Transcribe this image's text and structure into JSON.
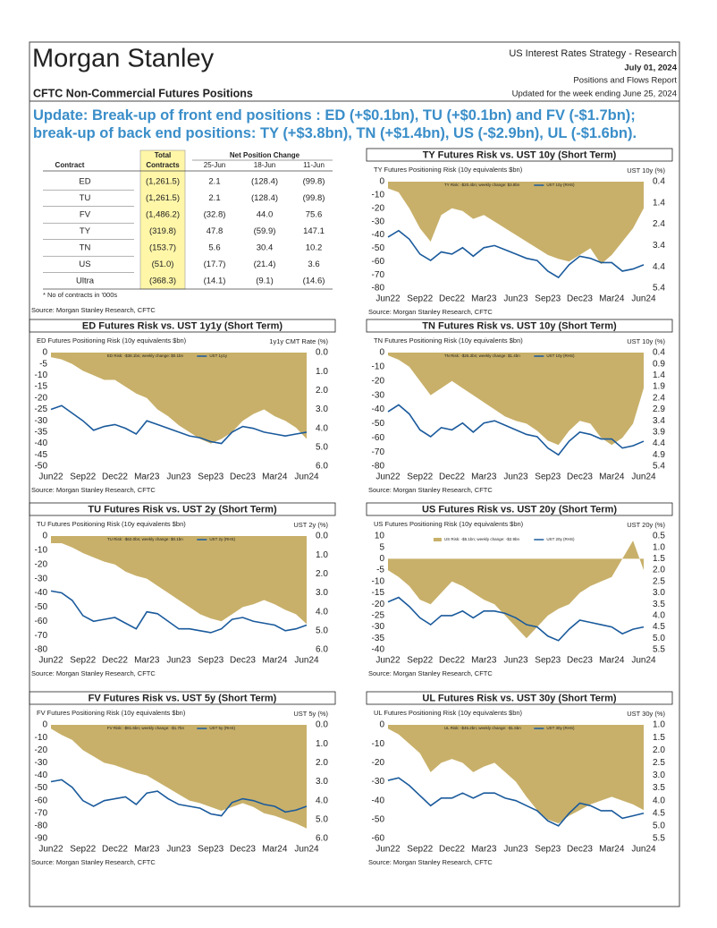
{
  "header": {
    "logo": "Morgan Stanley",
    "report_title": "CFTC Non-Commercial Futures Positions",
    "dept": "US Interest Rates Strategy - Research",
    "date": "July 01, 2024",
    "report_name": "Positions and Flows Report",
    "updated": "Updated for the week ending June 25, 2024"
  },
  "headline": "Update: Break-up of front end positions : ED (+$0.1bn), TU (+$0.1bn) and FV (-$1.7bn); break-up of back end positions: TY (+$3.8bn), TN (+$1.4bn), US (-$2.9bn), UL (-$1.6bn).",
  "table": {
    "total_header": [
      "Total",
      "Contracts"
    ],
    "group_header": "Net Position Change",
    "columns": [
      "Contract",
      "25-Jun",
      "18-Jun",
      "11-Jun"
    ],
    "rows": [
      [
        "ED",
        "(1,261.5)",
        "2.1",
        "(128.4)",
        "(99.8)"
      ],
      [
        "TU",
        "(1,261.5)",
        "2.1",
        "(128.4)",
        "(99.8)"
      ],
      [
        "FV",
        "(1,486.2)",
        "(32.8)",
        "44.0",
        "75.6"
      ],
      [
        "TY",
        "(319.8)",
        "47.8",
        "(59.9)",
        "147.1"
      ],
      [
        "TN",
        "(153.7)",
        "5.6",
        "30.4",
        "10.2"
      ],
      [
        "US",
        "(51.0)",
        "(17.7)",
        "(21.4)",
        "3.6"
      ],
      [
        "Ultra",
        "(368.3)",
        "(14.1)",
        "(9.1)",
        "(14.6)"
      ]
    ],
    "note": "* No of contracts in '000s",
    "source": "Source: Morgan Stanley Research, CFTC"
  },
  "chart_data": [
    {
      "type": "combo",
      "title": "TY Futures Risk vs. UST 10y (Short Term)",
      "y_label": "TY Futures Positioning Risk (10y equivalents $bn)",
      "y2_label": "UST 10y (%)",
      "source": "Source: Morgan Stanley Research, CFTC",
      "categories": [
        "Jun22",
        null,
        null,
        "Sep22",
        null,
        null,
        "Dec22",
        null,
        null,
        "Mar23",
        null,
        null,
        "Jun23",
        null,
        null,
        "Sep23",
        null,
        null,
        "Dec23",
        null,
        null,
        "Mar24",
        null,
        null,
        "Jun24"
      ],
      "ylim": [
        -80,
        0
      ],
      "yticks": [
        0,
        -10,
        -20,
        -30,
        -40,
        -50,
        -60,
        -70,
        -80
      ],
      "y2lim": [
        5.4,
        0.4
      ],
      "y2ticks": [
        0.4,
        1.4,
        2.4,
        3.4,
        4.4,
        5.4
      ],
      "series": [
        {
          "name": "TY Risk: -$20.4bn; weekly change: $3.8bn",
          "type": "area",
          "color": "#c8b06a",
          "values": [
            -5,
            -8,
            -20,
            -35,
            -45,
            -25,
            -20,
            -22,
            -28,
            -25,
            -30,
            -35,
            -40,
            -45,
            -50,
            -55,
            -58,
            -60,
            -55,
            -50,
            -62,
            -55,
            -45,
            -35,
            -20
          ]
        },
        {
          "name": "UST 10y (RHS)",
          "type": "line",
          "axis": "y2",
          "color": "#1a5a9c",
          "values": [
            3.0,
            2.7,
            3.1,
            3.8,
            4.1,
            3.7,
            3.8,
            3.5,
            3.9,
            3.5,
            3.4,
            3.6,
            3.8,
            4.0,
            4.1,
            4.6,
            4.9,
            4.3,
            3.9,
            4.0,
            4.2,
            4.2,
            4.6,
            4.5,
            4.3
          ]
        }
      ]
    },
    {
      "type": "combo",
      "title": "ED Futures Risk vs. UST 1y1y (Short Term)",
      "y_label": "ED Futures Positioning Risk (10y equivalents $bn)",
      "y2_label": "1y1y CMT Rate (%)",
      "source": "Source: Morgan Stanley Research, CFTC",
      "categories": [
        "Jun22",
        null,
        null,
        "Sep22",
        null,
        null,
        "Dec22",
        null,
        null,
        "Mar23",
        null,
        null,
        "Jun23",
        null,
        null,
        "Sep23",
        null,
        null,
        "Dec23",
        null,
        null,
        "Mar24",
        null,
        null,
        "Jun24"
      ],
      "ylim": [
        -50,
        0
      ],
      "yticks": [
        0,
        -5,
        -10,
        -15,
        -20,
        -25,
        -30,
        -35,
        -40,
        -45,
        -50
      ],
      "y2lim": [
        6,
        0
      ],
      "y2ticks": [
        {
          "value": 0,
          "label": "0.0"
        },
        {
          "value": 1,
          "label": "1.0"
        },
        {
          "value": 2,
          "label": "2.0"
        },
        {
          "value": 3,
          "label": "3.0"
        },
        {
          "value": 4,
          "label": "4.0"
        },
        {
          "value": 5,
          "label": "5.0"
        },
        {
          "value": 6,
          "label": "6.0"
        }
      ],
      "series": [
        {
          "name": "ED Risk: -$38.1bn; weekly change: $0.1bn",
          "type": "area",
          "color": "#c8b06a",
          "values": [
            -2,
            -3,
            -5,
            -8,
            -10,
            -12,
            -12,
            -15,
            -18,
            -20,
            -25,
            -28,
            -32,
            -35,
            -38,
            -40,
            -38,
            -35,
            -30,
            -27,
            -25,
            -28,
            -30,
            -33,
            -38
          ]
        },
        {
          "name": "UST 1y1y",
          "type": "line",
          "axis": "y2",
          "color": "#1a5a9c",
          "values": [
            3.0,
            2.8,
            3.2,
            3.6,
            4.1,
            3.9,
            3.8,
            4.0,
            4.3,
            3.6,
            3.8,
            4.0,
            4.2,
            4.4,
            4.5,
            4.7,
            4.8,
            4.2,
            3.9,
            4.0,
            4.2,
            4.3,
            4.4,
            4.3,
            4.2
          ]
        }
      ]
    },
    {
      "type": "combo",
      "title": "TN Futures Risk vs. UST 10y (Short Term)",
      "y_label": "TN Futures Positioning Risk (10y equivalents $bn)",
      "y2_label": "UST 10y (%)",
      "source": "Source: Morgan Stanley Research, CFTC",
      "categories": [
        "Jun22",
        null,
        null,
        "Sep22",
        null,
        null,
        "Dec22",
        null,
        null,
        "Mar23",
        null,
        null,
        "Jun23",
        null,
        null,
        "Sep23",
        null,
        null,
        "Dec23",
        null,
        null,
        "Mar24",
        null,
        null,
        "Jun24"
      ],
      "ylim": [
        -80,
        0
      ],
      "yticks": [
        0,
        -10,
        -20,
        -30,
        -40,
        -50,
        -60,
        -70,
        -80
      ],
      "y2lim": [
        5.4,
        0.4
      ],
      "y2ticks": [
        0.4,
        0.9,
        1.4,
        1.9,
        2.4,
        2.9,
        3.4,
        3.9,
        4.4,
        4.9,
        5.4
      ],
      "series": [
        {
          "name": "TN Risk: -$25.3bn; weekly change: $1.4bn",
          "type": "area",
          "color": "#c8b06a",
          "values": [
            -2,
            -5,
            -10,
            -20,
            -30,
            -25,
            -20,
            -25,
            -30,
            -35,
            -40,
            -45,
            -48,
            -50,
            -55,
            -62,
            -65,
            -55,
            -48,
            -50,
            -60,
            -65,
            -60,
            -50,
            -25
          ]
        },
        {
          "name": "UST 10y (RHS)",
          "type": "line",
          "axis": "y2",
          "color": "#1a5a9c",
          "values": [
            3.0,
            2.7,
            3.1,
            3.8,
            4.1,
            3.7,
            3.8,
            3.5,
            3.9,
            3.5,
            3.4,
            3.6,
            3.8,
            4.0,
            4.1,
            4.6,
            4.9,
            4.3,
            3.9,
            4.0,
            4.2,
            4.2,
            4.6,
            4.5,
            4.3
          ]
        }
      ]
    },
    {
      "type": "combo",
      "title": "TU Futures Risk vs. UST 2y (Short Term)",
      "y_label": "TU Futures Positioning Risk (10y equivalents $bn)",
      "y2_label": "UST 2y (%)",
      "source": "Source: Morgan Stanley Research, CFTC",
      "categories": [
        "Jun22",
        null,
        null,
        "Sep22",
        null,
        null,
        "Dec22",
        null,
        null,
        "Mar23",
        null,
        null,
        "Jun23",
        null,
        null,
        "Sep23",
        null,
        null,
        "Dec23",
        null,
        null,
        "Mar24",
        null,
        null,
        "Jun24"
      ],
      "ylim": [
        -80,
        0
      ],
      "yticks": [
        0,
        -10,
        -20,
        -30,
        -40,
        -50,
        -60,
        -70,
        -80
      ],
      "y2lim": [
        6,
        0
      ],
      "y2ticks": [
        {
          "value": 0,
          "label": "0.0"
        },
        {
          "value": 1,
          "label": "1.0"
        },
        {
          "value": 2,
          "label": "2.0"
        },
        {
          "value": 3,
          "label": "3.0"
        },
        {
          "value": 4,
          "label": "4.0"
        },
        {
          "value": 5,
          "label": "5.0"
        },
        {
          "value": 6,
          "label": "6.0"
        }
      ],
      "series": [
        {
          "name": "TU Risk: -$62.0bn; weekly change: $0.1bn",
          "type": "area",
          "color": "#c8b06a",
          "values": [
            -5,
            -5,
            -8,
            -12,
            -15,
            -18,
            -20,
            -25,
            -28,
            -30,
            -35,
            -40,
            -45,
            -50,
            -55,
            -58,
            -60,
            -55,
            -50,
            -48,
            -45,
            -48,
            -52,
            -55,
            -62
          ]
        },
        {
          "name": "UST 2y (RHS)",
          "type": "line",
          "axis": "y2",
          "color": "#1a5a9c",
          "values": [
            2.9,
            3.0,
            3.4,
            4.2,
            4.5,
            4.4,
            4.3,
            4.6,
            4.9,
            4.0,
            4.1,
            4.5,
            4.9,
            4.9,
            5.0,
            5.1,
            4.9,
            4.4,
            4.3,
            4.5,
            4.6,
            4.7,
            5.0,
            4.9,
            4.7
          ]
        }
      ]
    },
    {
      "type": "combo",
      "title": "US Futures Risk vs. UST 20y (Short Term)",
      "y_label": "US Futures Positioning Risk (10y equivalents $bn)",
      "y2_label": "UST 20y (%)",
      "source": "Source: Morgan Stanley Research, CFTC",
      "categories": [
        "Jun22",
        null,
        null,
        "Sep22",
        null,
        null,
        "Dec22",
        null,
        null,
        "Mar23",
        null,
        null,
        "Jun23",
        null,
        null,
        "Sep23",
        null,
        null,
        "Dec23",
        null,
        null,
        "Mar24",
        null,
        null,
        "Jun24"
      ],
      "ylim": [
        -40,
        10
      ],
      "yticks": [
        10,
        5,
        0,
        -5,
        -10,
        -15,
        -20,
        -25,
        -30,
        -35,
        -40
      ],
      "y2lim": [
        5.5,
        0.5
      ],
      "y2ticks": [
        0.5,
        {
          "value": 1,
          "label": "1.0"
        },
        1.5,
        {
          "value": 2,
          "label": "2.0"
        },
        2.5,
        {
          "value": 3,
          "label": "3.0"
        },
        3.5,
        {
          "value": 4,
          "label": "4.0"
        },
        4.5,
        {
          "value": 5,
          "label": "5.0"
        },
        5.5
      ],
      "series": [
        {
          "name": "US Risk: -$5.1bn; weekly change: -$2.9bn",
          "type": "area",
          "color": "#c8b06a",
          "values": [
            -5,
            -8,
            -12,
            -18,
            -20,
            -15,
            -10,
            -12,
            -15,
            -18,
            -20,
            -25,
            -30,
            -35,
            -30,
            -25,
            -22,
            -20,
            -15,
            -12,
            -10,
            -8,
            0,
            8,
            -5
          ]
        },
        {
          "name": "UST 20y (RHS)",
          "type": "line",
          "axis": "y2",
          "color": "#1a5a9c",
          "values": [
            3.4,
            3.2,
            3.6,
            4.1,
            4.4,
            4.0,
            4.0,
            3.8,
            4.1,
            3.8,
            3.8,
            3.9,
            4.1,
            4.4,
            4.5,
            4.9,
            5.1,
            4.6,
            4.2,
            4.3,
            4.4,
            4.5,
            4.8,
            4.6,
            4.5
          ]
        }
      ]
    },
    {
      "type": "combo",
      "title": "FV Futures Risk vs. UST 5y (Short Term)",
      "y_label": "FV Futures Positioning Risk (10y equivalents $bn)",
      "y2_label": "UST 5y (%)",
      "source": "Source: Morgan Stanley Research, CFTC",
      "categories": [
        "Jun22",
        null,
        null,
        "Sep22",
        null,
        null,
        "Dec22",
        null,
        null,
        "Mar23",
        null,
        null,
        "Jun23",
        null,
        null,
        "Sep23",
        null,
        null,
        "Dec23",
        null,
        null,
        "Mar24",
        null,
        null,
        "Jun24"
      ],
      "ylim": [
        -90,
        0
      ],
      "yticks": [
        0,
        -10,
        -20,
        -30,
        -40,
        -50,
        -60,
        -70,
        -80,
        -90
      ],
      "y2lim": [
        6,
        0
      ],
      "y2ticks": [
        {
          "value": 0,
          "label": "0.0"
        },
        {
          "value": 1,
          "label": "1.0"
        },
        {
          "value": 2,
          "label": "2.0"
        },
        {
          "value": 3,
          "label": "3.0"
        },
        {
          "value": 4,
          "label": "4.0"
        },
        {
          "value": 5,
          "label": "5.0"
        },
        {
          "value": 6,
          "label": "6.0"
        }
      ],
      "series": [
        {
          "name": "FV Risk: -$81.6bn; weekly change: -$1.7bn",
          "type": "area",
          "color": "#c8b06a",
          "values": [
            -3,
            -8,
            -12,
            -20,
            -25,
            -30,
            -32,
            -35,
            -38,
            -40,
            -45,
            -50,
            -55,
            -60,
            -62,
            -65,
            -68,
            -65,
            -62,
            -65,
            -70,
            -72,
            -75,
            -78,
            -82
          ]
        },
        {
          "name": "UST 5y (RHS)",
          "type": "line",
          "axis": "y2",
          "color": "#1a5a9c",
          "values": [
            3.0,
            2.9,
            3.3,
            4.0,
            4.3,
            4.0,
            3.9,
            3.8,
            4.2,
            3.6,
            3.5,
            3.9,
            4.2,
            4.3,
            4.4,
            4.7,
            4.8,
            4.1,
            3.9,
            4.0,
            4.2,
            4.3,
            4.6,
            4.5,
            4.3
          ]
        }
      ]
    },
    {
      "type": "combo",
      "title": "UL Futures Risk vs. UST 30y (Short Term)",
      "y_label": "UL Futures Positioning Risk (10y equivalents $bn)",
      "y2_label": "UST 30y (%)",
      "source": "Source: Morgan Stanley Research, CFTC",
      "categories": [
        "Jun22",
        null,
        null,
        "Sep22",
        null,
        null,
        "Dec22",
        null,
        null,
        "Mar23",
        null,
        null,
        "Jun23",
        null,
        null,
        "Sep23",
        null,
        null,
        "Dec23",
        null,
        null,
        "Mar24",
        null,
        null,
        "Jun24"
      ],
      "ylim": [
        -60,
        0
      ],
      "yticks": [
        0,
        -10,
        -20,
        -30,
        -40,
        -50,
        -60
      ],
      "y2lim": [
        5.5,
        1
      ],
      "y2ticks": [
        {
          "value": 1,
          "label": "1.0"
        },
        1.5,
        {
          "value": 2,
          "label": "2.0"
        },
        2.5,
        {
          "value": 3,
          "label": "3.0"
        },
        3.5,
        {
          "value": 4,
          "label": "4.0"
        },
        4.5,
        {
          "value": 5,
          "label": "5.0"
        },
        5.5
      ],
      "series": [
        {
          "name": "UL Risk: -$45.2bn; weekly change: -$1.6bn",
          "type": "area",
          "color": "#c8b06a",
          "values": [
            -2,
            -5,
            -10,
            -15,
            -25,
            -20,
            -18,
            -20,
            -25,
            -22,
            -20,
            -25,
            -30,
            -38,
            -45,
            -50,
            -52,
            -48,
            -45,
            -42,
            -40,
            -38,
            -40,
            -42,
            -45
          ]
        },
        {
          "name": "UST 30y (RHS)",
          "type": "line",
          "axis": "y2",
          "color": "#1a5a9c",
          "values": [
            3.2,
            3.1,
            3.4,
            3.8,
            4.2,
            3.9,
            3.9,
            3.7,
            3.9,
            3.7,
            3.7,
            3.9,
            4.0,
            4.2,
            4.4,
            4.8,
            5.0,
            4.5,
            4.1,
            4.2,
            4.4,
            4.4,
            4.7,
            4.6,
            4.5
          ]
        }
      ]
    }
  ]
}
